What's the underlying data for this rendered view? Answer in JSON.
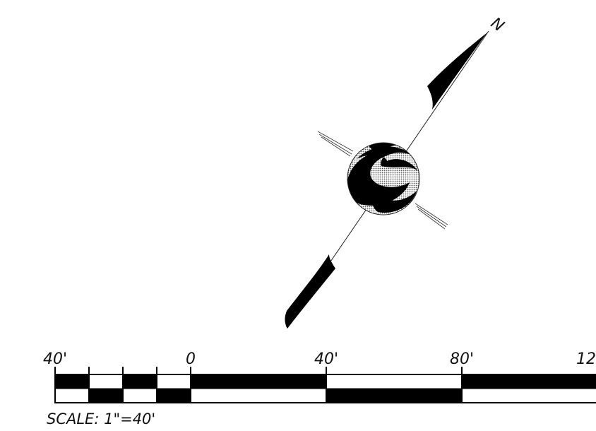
{
  "north_arrow": {
    "label": "N"
  },
  "scale_bar": {
    "labels": [
      "40'",
      "0",
      "40'",
      "80'",
      "12"
    ],
    "caption": "SCALE: 1\"=40'"
  }
}
